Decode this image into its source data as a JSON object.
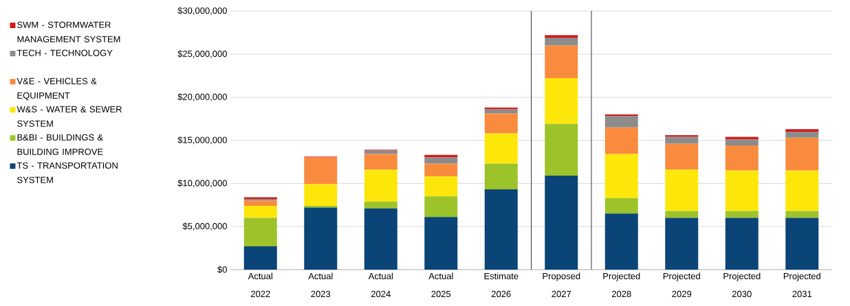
{
  "chart_data": {
    "type": "bar",
    "stacked": true,
    "categories": [
      "Actual 2022",
      "Actual 2023",
      "Actual 2024",
      "Actual 2025",
      "Estimate 2026",
      "Proposed 2027",
      "Projected 2028",
      "Projected 2029",
      "Projected 2030",
      "Projected 2031"
    ],
    "series": [
      {
        "name": "TS - TRANSPORTATION SYSTEM",
        "color": "#0b4477",
        "values": [
          2700000,
          7200000,
          7100000,
          6100000,
          9300000,
          10900000,
          6500000,
          6000000,
          6000000,
          6000000
        ]
      },
      {
        "name": "B&BI - BUILDINGS & BUILDING IMPROVE",
        "color": "#9dc32a",
        "values": [
          3300000,
          200000,
          800000,
          2400000,
          3000000,
          6000000,
          1800000,
          800000,
          800000,
          800000
        ]
      },
      {
        "name": "W&S - WATER & SEWER SYSTEM",
        "color": "#fde70a",
        "values": [
          1400000,
          2500000,
          3700000,
          2300000,
          3500000,
          5300000,
          5100000,
          4800000,
          4700000,
          4700000
        ]
      },
      {
        "name": "V&E - VEHICLES & EQUIPMENT",
        "color": "#f98b3e",
        "values": [
          600000,
          3100000,
          1800000,
          1500000,
          2300000,
          3800000,
          3100000,
          3000000,
          2900000,
          3800000
        ]
      },
      {
        "name": "TECH - TECHNOLOGY",
        "color": "#8c8c8c",
        "values": [
          200000,
          0,
          400000,
          700000,
          500000,
          900000,
          1300000,
          800000,
          700000,
          700000
        ]
      },
      {
        "name": "SWM - STORMWATER MANAGEMENT SYSTEM",
        "color": "#d61a1a",
        "values": [
          200000,
          100000,
          100000,
          300000,
          200000,
          300000,
          200000,
          200000,
          300000,
          300000
        ]
      }
    ],
    "ylim": [
      0,
      30000000
    ],
    "yticks": [
      {
        "value": 0,
        "label": "$0"
      },
      {
        "value": 5000000,
        "label": "$5,000,000"
      },
      {
        "value": 10000000,
        "label": "$10,000,000"
      },
      {
        "value": 15000000,
        "label": "$15,000,000"
      },
      {
        "value": 20000000,
        "label": "$20,000,000"
      },
      {
        "value": 25000000,
        "label": "$25,000,000"
      },
      {
        "value": 30000000,
        "label": "$30,000,000"
      }
    ],
    "grid": "y",
    "legend": "left"
  }
}
